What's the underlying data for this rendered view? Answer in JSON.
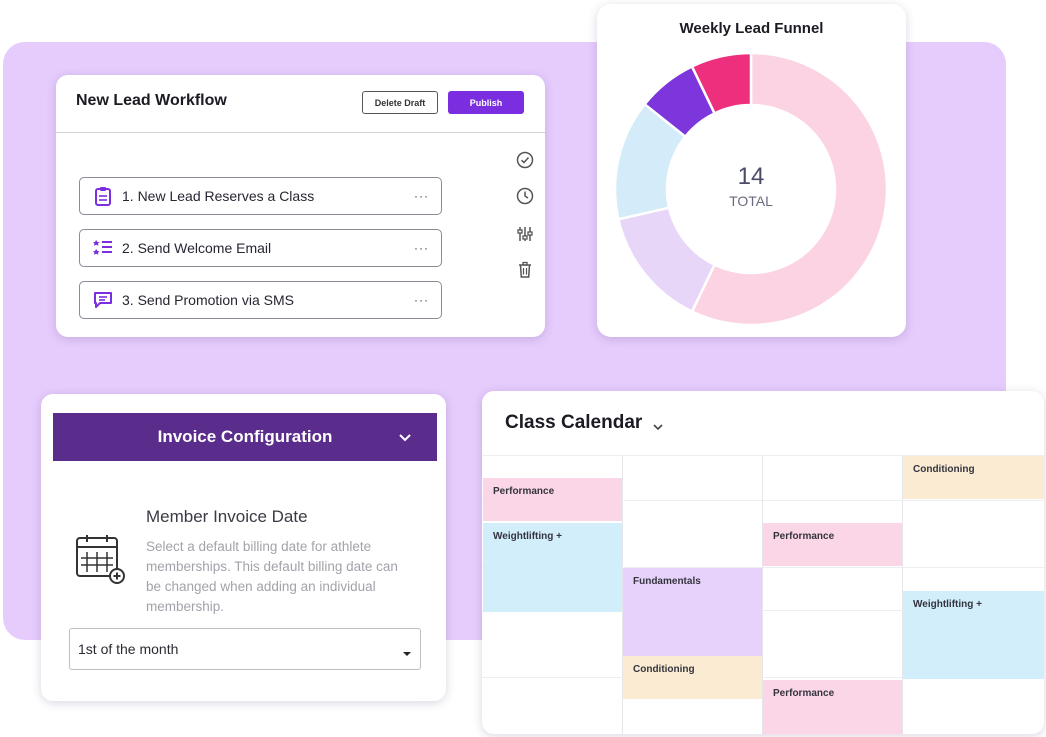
{
  "workflow": {
    "title": "New Lead Workflow",
    "delete_draft_label": "Delete Draft",
    "publish_label": "Publish",
    "steps": [
      {
        "label": "1. New Lead Reserves a Class",
        "icon": "clipboard-icon"
      },
      {
        "label": "2. Send Welcome Email",
        "icon": "checklist-icon"
      },
      {
        "label": "3. Send Promotion via SMS",
        "icon": "message-icon"
      }
    ],
    "more_label": "···",
    "side_icons": [
      "check-circle-icon",
      "clock-icon",
      "sliders-icon",
      "trash-icon"
    ],
    "accent_color": "#7a2ee0"
  },
  "funnel": {
    "title": "Weekly Lead Funnel",
    "total_value": "14",
    "total_label": "TOTAL"
  },
  "chart_data": {
    "type": "pie",
    "title": "Weekly Lead Funnel",
    "total": 14,
    "slices": [
      {
        "value": 8,
        "color": "#fbd3e2"
      },
      {
        "value": 2,
        "color": "#e8d6f8"
      },
      {
        "value": 2,
        "color": "#d4ecf9"
      },
      {
        "value": 1,
        "color": "#7d35dc"
      },
      {
        "value": 1,
        "color": "#ee2f7e"
      }
    ]
  },
  "invoice": {
    "header": "Invoice Configuration",
    "heading": "Member Invoice Date",
    "description": "Select a default billing date for athlete memberships. This default billing date can be changed when adding an individual membership.",
    "selected_option": "1st of the month",
    "header_color": "#5a2d8c"
  },
  "calendar": {
    "title": "Class Calendar",
    "events": [
      {
        "label": "Performance",
        "color": "#fbd6e6"
      },
      {
        "label": "Weightlifting +",
        "color": "#d2eefb"
      },
      {
        "label": "Fundamentals",
        "color": "#e6d2fb"
      },
      {
        "label": "Conditioning",
        "color": "#fbebd2"
      },
      {
        "label": "Performance",
        "color": "#fbd6e6"
      },
      {
        "label": "Performance",
        "color": "#fbd6e6"
      },
      {
        "label": "Conditioning",
        "color": "#fbebd2"
      },
      {
        "label": "Weightlifting +",
        "color": "#d2eefb"
      }
    ]
  }
}
